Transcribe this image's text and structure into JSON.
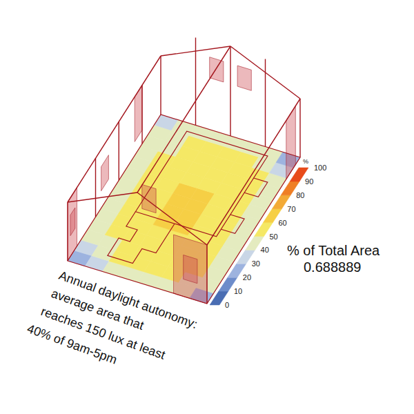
{
  "chart_data": {
    "type": "heatmap",
    "title_lines": [
      "Annual daylight autonomy:",
      "average area that",
      "reaches 150 lux at least",
      "40% of 9am-5pm"
    ],
    "cells": [
      [
        22,
        35,
        45,
        48,
        48,
        46,
        40,
        28
      ],
      [
        38,
        46,
        52,
        54,
        54,
        52,
        47,
        42
      ],
      [
        42,
        48,
        55,
        57,
        57,
        55,
        50,
        45
      ],
      [
        44,
        50,
        56,
        58,
        58,
        56,
        52,
        46
      ],
      [
        45,
        51,
        57,
        59,
        59,
        57,
        53,
        47
      ],
      [
        45,
        52,
        58,
        60,
        60,
        58,
        53,
        47
      ],
      [
        46,
        52,
        58,
        60,
        60,
        58,
        54,
        48
      ],
      [
        46,
        52,
        58,
        61,
        61,
        58,
        54,
        48
      ],
      [
        45,
        52,
        58,
        60,
        60,
        58,
        53,
        47
      ],
      [
        45,
        51,
        57,
        59,
        59,
        57,
        53,
        46
      ],
      [
        44,
        50,
        56,
        58,
        58,
        56,
        51,
        45
      ],
      [
        43,
        49,
        55,
        57,
        57,
        55,
        50,
        43
      ],
      [
        40,
        47,
        54,
        56,
        56,
        54,
        48,
        38
      ],
      [
        30,
        42,
        46,
        48,
        48,
        46,
        40,
        25
      ]
    ],
    "colorbar": {
      "lim": [
        0,
        100
      ],
      "ticks": [
        0,
        10,
        20,
        30,
        40,
        50,
        60,
        70,
        80,
        90,
        100
      ],
      "colors": [
        "#4a6db3",
        "#6d8cca",
        "#9db3df",
        "#c9d6e6",
        "#e4ebbf",
        "#f5e865",
        "#f6cf45",
        "#f3aa36",
        "#ef7f25",
        "#e84b1a"
      ],
      "unit": "%"
    },
    "annotation": "% of Total Area",
    "annotation_value": 0.688889
  }
}
